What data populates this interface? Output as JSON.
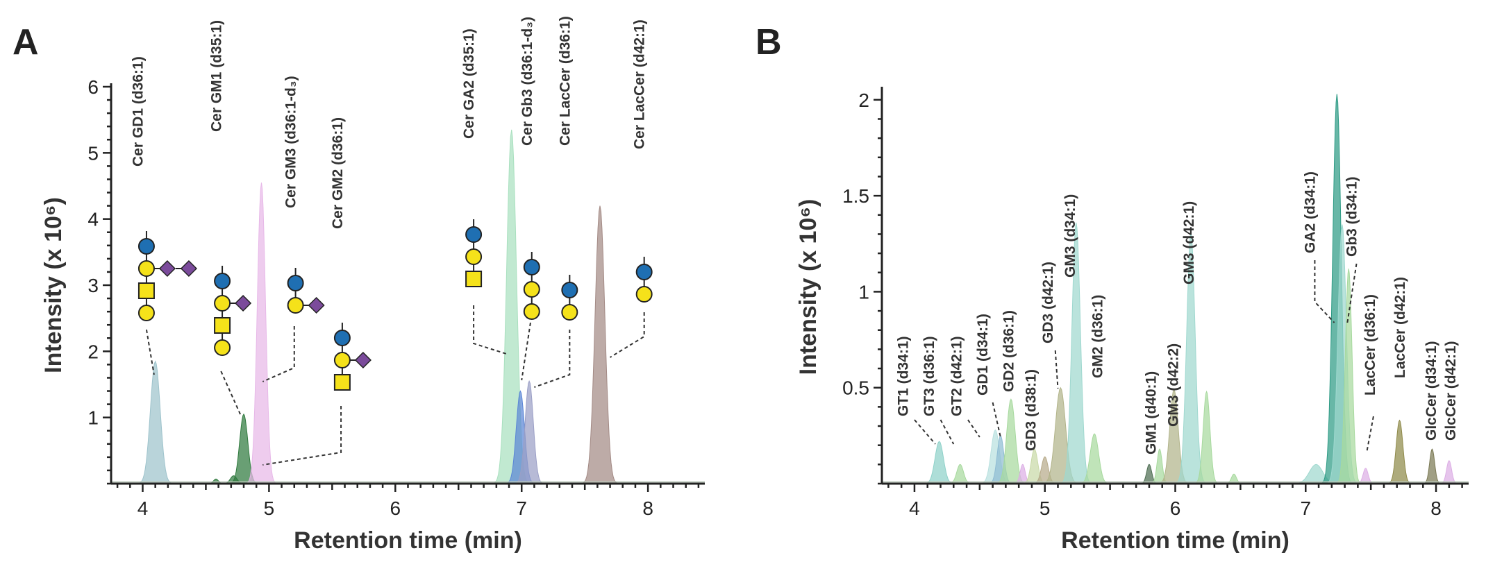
{
  "chart_data": [
    {
      "panel": "A",
      "type": "area",
      "xlabel": "Retention time (min)",
      "ylabel": "Intensity (x 10⁶)",
      "xlim": [
        3.75,
        8.45
      ],
      "ylim": [
        0,
        6
      ],
      "xticks": [
        4,
        5,
        6,
        7,
        8
      ],
      "yticks": [
        1,
        2,
        3,
        4,
        5,
        6
      ],
      "peaks": [
        {
          "x": 4.1,
          "y": 1.85,
          "w": 0.06,
          "color": "#9ec3cc"
        },
        {
          "x": 4.58,
          "y": 0.07,
          "w": 0.03,
          "color": "#2f7a3e"
        },
        {
          "x": 4.72,
          "y": 0.12,
          "w": 0.04,
          "color": "#2f7a3e"
        },
        {
          "x": 4.8,
          "y": 1.05,
          "w": 0.05,
          "color": "#2f7a3e"
        },
        {
          "x": 4.94,
          "y": 4.55,
          "w": 0.05,
          "color": "#e7b8e8"
        },
        {
          "x": 6.92,
          "y": 5.35,
          "w": 0.06,
          "color": "#a9e0bf"
        },
        {
          "x": 6.99,
          "y": 1.4,
          "w": 0.05,
          "color": "#5b86d6"
        },
        {
          "x": 7.06,
          "y": 1.55,
          "w": 0.05,
          "color": "#9b9fc6"
        },
        {
          "x": 7.62,
          "y": 4.2,
          "w": 0.06,
          "color": "#a38a85"
        }
      ],
      "labels": [
        {
          "text": "Cer  GD1 (d36:1)",
          "x": 4.0
        },
        {
          "text": "Cer  GM1 (d35:1)",
          "x": 4.62
        },
        {
          "text": "Cer  GM3 (d36:1-d₃)",
          "x": 5.21
        },
        {
          "text": "Cer  GM2 (d36:1)",
          "x": 5.58
        },
        {
          "text": "Cer  GA2 (d35:1)",
          "x": 6.62
        },
        {
          "text": "Cer  Gb3 (d36:1-d₃)",
          "x": 7.08
        },
        {
          "text": "Cer  LacCer (d36:1)",
          "x": 7.38
        },
        {
          "text": "Cer  LacCer (d42:1)",
          "x": 7.97
        }
      ]
    },
    {
      "panel": "B",
      "type": "area",
      "xlabel": "Retention time (min)",
      "ylabel": "Intensity (x 10⁶)",
      "xlim": [
        3.75,
        8.25
      ],
      "ylim": [
        0,
        2.05
      ],
      "xticks": [
        4,
        5,
        6,
        7,
        8
      ],
      "yticks": [
        0.5,
        1,
        1.5,
        2
      ],
      "peaks": [
        {
          "x": 4.19,
          "y": 0.22,
          "w": 0.05,
          "color": "#8fd1c9"
        },
        {
          "x": 4.35,
          "y": 0.1,
          "w": 0.04,
          "color": "#a7d99e"
        },
        {
          "x": 4.62,
          "y": 0.28,
          "w": 0.05,
          "color": "#b9e0df"
        },
        {
          "x": 4.66,
          "y": 0.25,
          "w": 0.04,
          "color": "#8fbcd3"
        },
        {
          "x": 4.74,
          "y": 0.44,
          "w": 0.05,
          "color": "#a7d99e"
        },
        {
          "x": 4.83,
          "y": 0.1,
          "w": 0.03,
          "color": "#dcaee5"
        },
        {
          "x": 4.92,
          "y": 0.18,
          "w": 0.04,
          "color": "#c9d9a7"
        },
        {
          "x": 5.0,
          "y": 0.14,
          "w": 0.04,
          "color": "#b7aa8a"
        },
        {
          "x": 5.12,
          "y": 0.5,
          "w": 0.06,
          "color": "#b2b48a"
        },
        {
          "x": 5.24,
          "y": 1.36,
          "w": 0.05,
          "color": "#9fd8cf"
        },
        {
          "x": 5.38,
          "y": 0.26,
          "w": 0.05,
          "color": "#a7d99e"
        },
        {
          "x": 5.8,
          "y": 0.1,
          "w": 0.03,
          "color": "#4d6d52"
        },
        {
          "x": 5.88,
          "y": 0.18,
          "w": 0.03,
          "color": "#a7d99e"
        },
        {
          "x": 5.99,
          "y": 0.49,
          "w": 0.05,
          "color": "#b2b48a"
        },
        {
          "x": 6.12,
          "y": 1.31,
          "w": 0.05,
          "color": "#9fd8cf"
        },
        {
          "x": 6.24,
          "y": 0.48,
          "w": 0.04,
          "color": "#a7d99e"
        },
        {
          "x": 6.45,
          "y": 0.05,
          "w": 0.03,
          "color": "#a7d99e"
        },
        {
          "x": 7.08,
          "y": 0.1,
          "w": 0.08,
          "color": "#9fd8cf"
        },
        {
          "x": 7.24,
          "y": 2.03,
          "w": 0.05,
          "color": "#2e9b85"
        },
        {
          "x": 7.28,
          "y": 1.35,
          "w": 0.05,
          "color": "#9fd8cf"
        },
        {
          "x": 7.33,
          "y": 1.12,
          "w": 0.04,
          "color": "#a7d99e"
        },
        {
          "x": 7.46,
          "y": 0.08,
          "w": 0.03,
          "color": "#dcaee5"
        },
        {
          "x": 7.72,
          "y": 0.33,
          "w": 0.04,
          "color": "#8f8a4a"
        },
        {
          "x": 7.97,
          "y": 0.18,
          "w": 0.03,
          "color": "#7b7a55"
        },
        {
          "x": 8.1,
          "y": 0.12,
          "w": 0.03,
          "color": "#dcaee5"
        }
      ],
      "labels": [
        {
          "text": "GT1 (d34:1)",
          "x": 3.95
        },
        {
          "text": "GT3 (d36:1)",
          "x": 4.15
        },
        {
          "text": "GT2 (d42:1)",
          "x": 4.36
        },
        {
          "text": "GD1 (d34:1)",
          "x": 4.56
        },
        {
          "text": "GD2 (d36:1)",
          "x": 4.76
        },
        {
          "text": "GD3 (d38:1)",
          "x": 4.93
        },
        {
          "text": "GD3 (d42:1)",
          "x": 5.06
        },
        {
          "text": "GM3 (d34:1)",
          "x": 5.23
        },
        {
          "text": "GM2 (d36:1)",
          "x": 5.44
        },
        {
          "text": "GM1 (d40:1)",
          "x": 5.85
        },
        {
          "text": "GM3 (d42:2)",
          "x": 6.02
        },
        {
          "text": "GM3 (d42:1)",
          "x": 6.14
        },
        {
          "text": "GA2 (d34:1)",
          "x": 7.07
        },
        {
          "text": "Gb3 (d34:1)",
          "x": 7.39
        },
        {
          "text": "LacCer (d36:1)",
          "x": 7.53
        },
        {
          "text": "LacCer (d42:1)",
          "x": 7.76
        },
        {
          "text": "GlcCer (d34:1)",
          "x": 8.0
        },
        {
          "text": "GlcCer (d42:1)",
          "x": 8.15
        }
      ]
    }
  ],
  "panels": {
    "a_letter": "A",
    "b_letter": "B"
  },
  "glycan_colors": {
    "glc": "#1f6fb2",
    "gal": "#f5e21a",
    "galnac": "#f5e21a",
    "sia": "#7b4b9b"
  }
}
